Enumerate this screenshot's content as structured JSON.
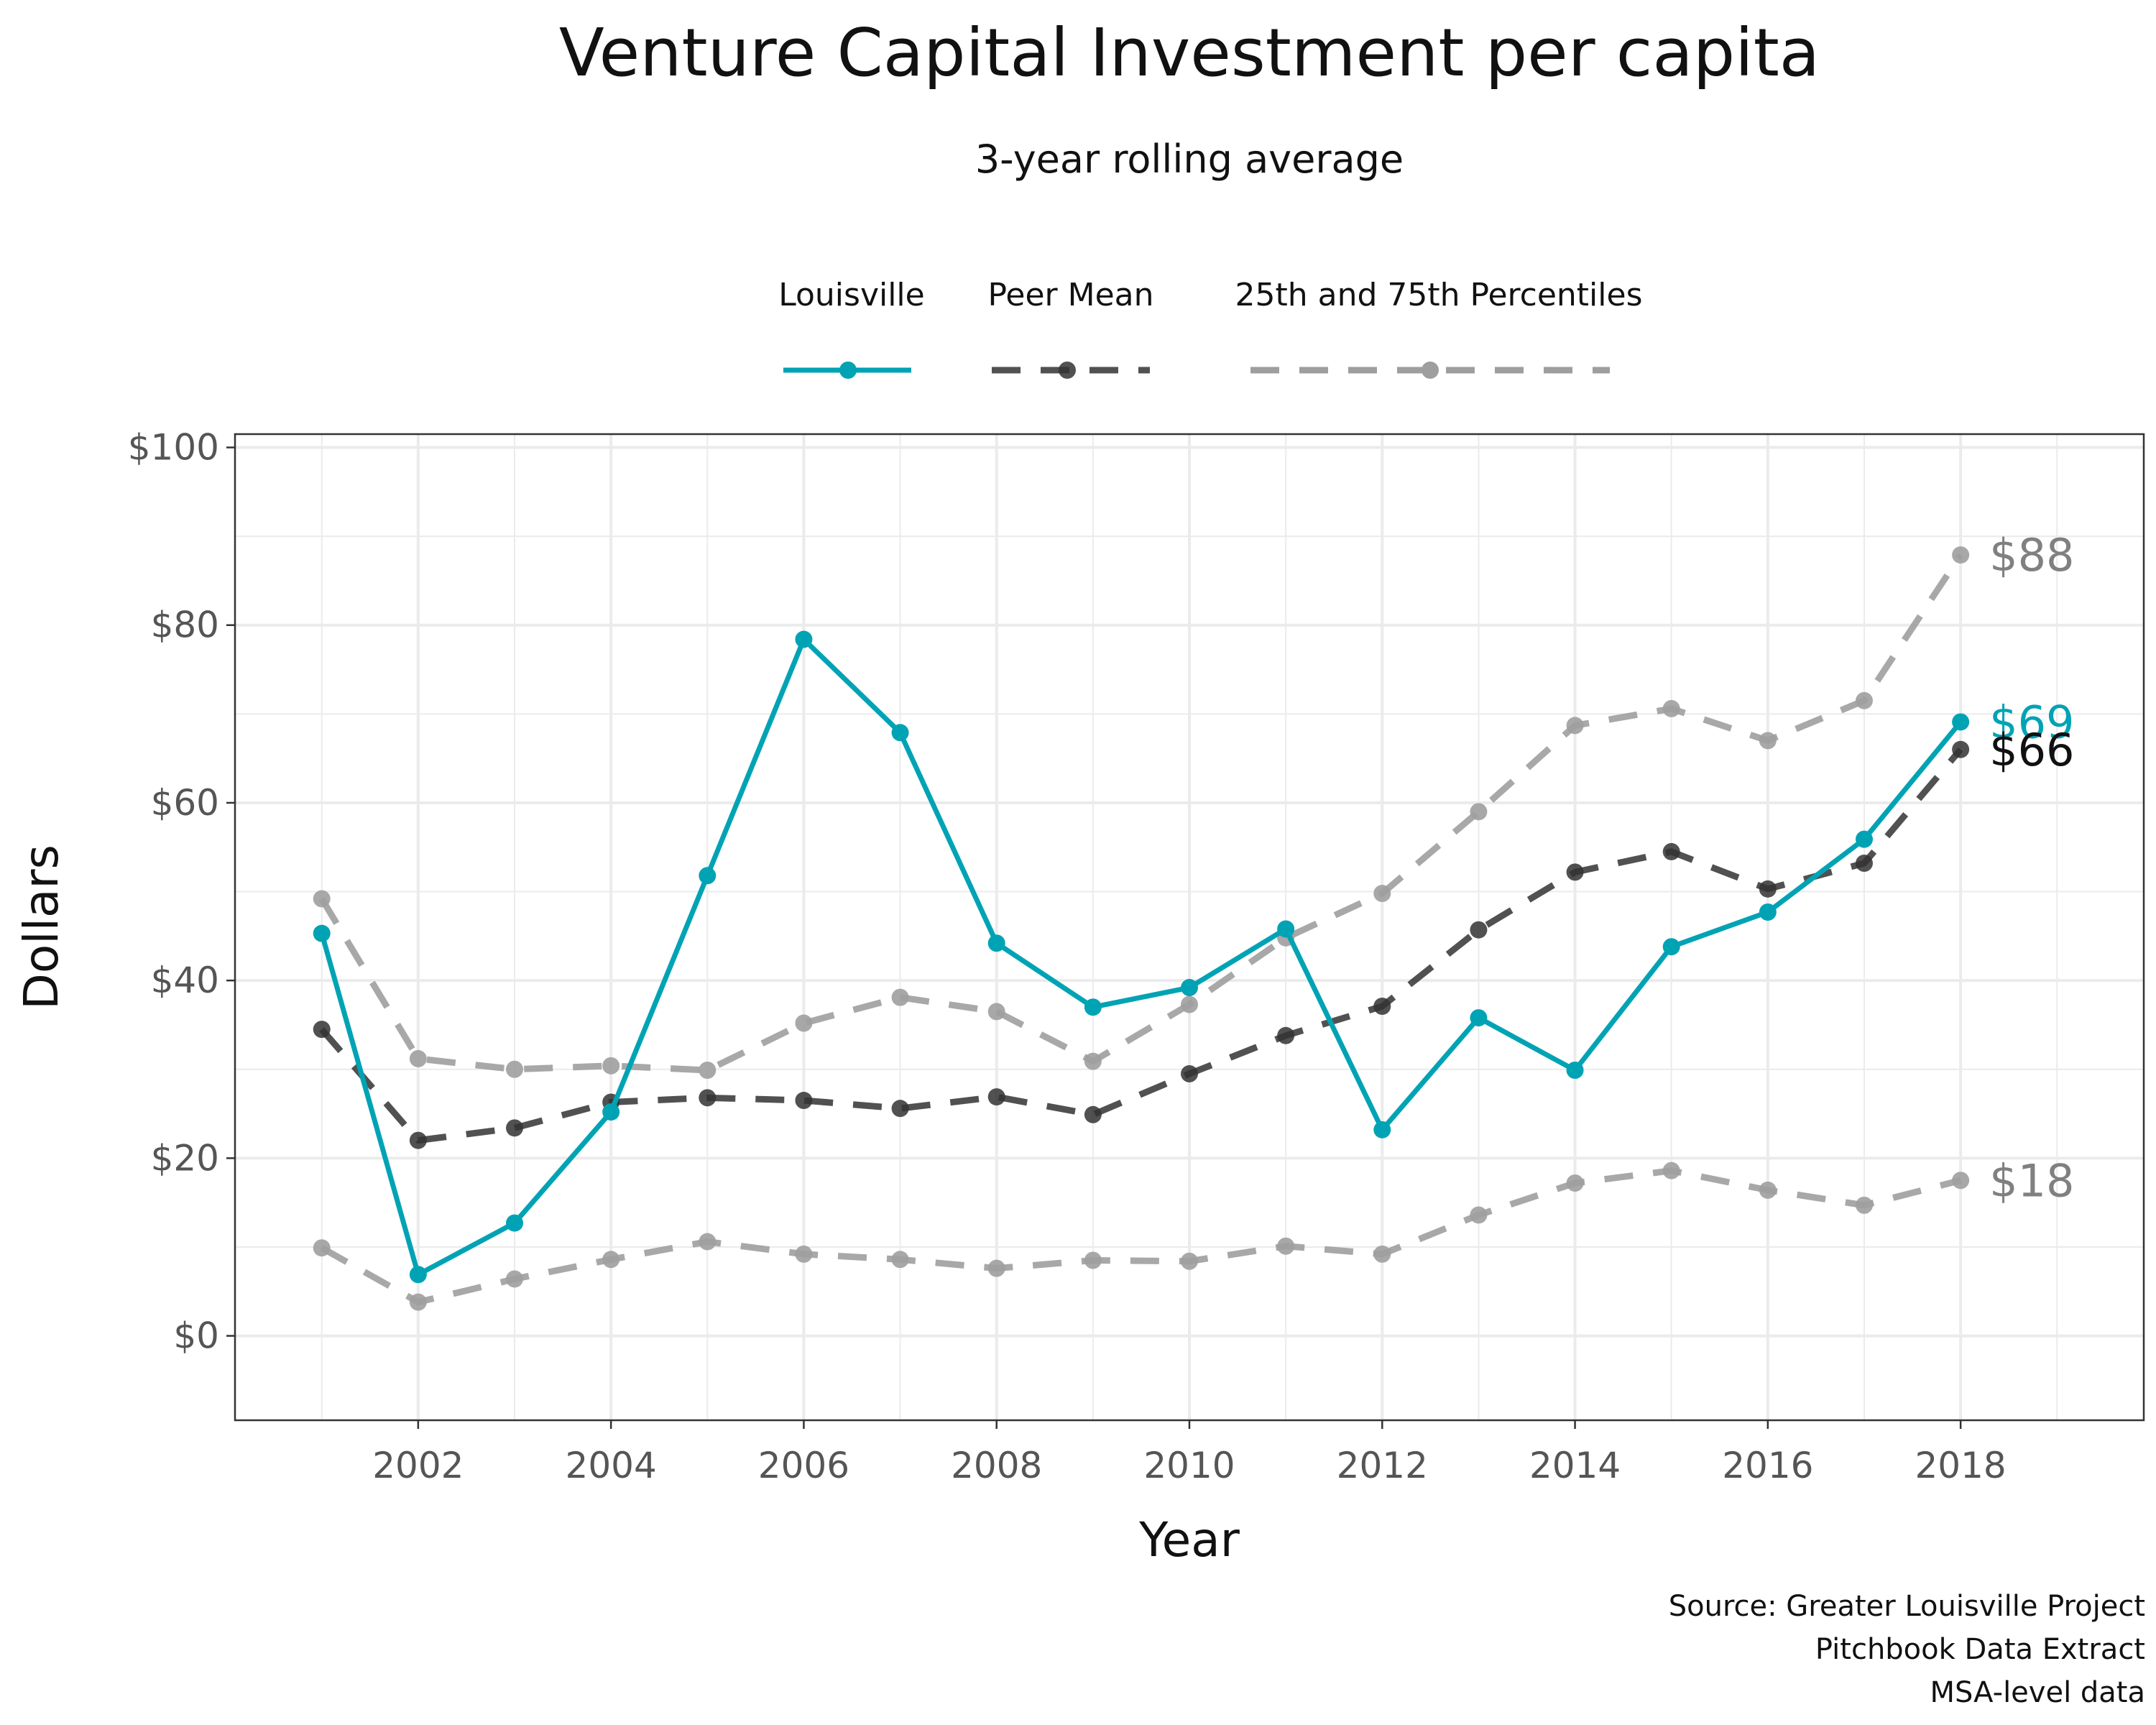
{
  "chart_data": {
    "type": "line",
    "title": "Venture Capital Investment per capita",
    "subtitle": "3-year rolling average",
    "xlabel": "Year",
    "ylabel": "Dollars",
    "x": [
      2001,
      2002,
      2003,
      2004,
      2005,
      2006,
      2007,
      2008,
      2009,
      2010,
      2011,
      2012,
      2013,
      2014,
      2015,
      2016,
      2017,
      2018
    ],
    "xlim": [
      2000.1,
      2019.9
    ],
    "ylim": [
      -9.5,
      101.5
    ],
    "x_ticks": [
      2002,
      2004,
      2006,
      2008,
      2010,
      2012,
      2014,
      2016,
      2018
    ],
    "x_tick_labels": [
      "2002",
      "2004",
      "2006",
      "2008",
      "2010",
      "2012",
      "2014",
      "2016",
      "2018"
    ],
    "y_ticks": [
      0,
      20,
      40,
      60,
      80,
      100
    ],
    "y_tick_labels": [
      "$0",
      "$20",
      "$40",
      "$60",
      "$80",
      "$100"
    ],
    "grid": true,
    "legend_position": "top",
    "legend": [
      {
        "label": "Louisville",
        "color": "#00A3B4",
        "dash": "solid"
      },
      {
        "label": "Peer Mean",
        "color": "#333333",
        "dash": "dashed"
      },
      {
        "label": "25th and 75th Percentiles",
        "color": "#9e9e9e",
        "dash": "dashed"
      }
    ],
    "series": [
      {
        "name": "Louisville",
        "color": "#00A3B4",
        "dash": "solid",
        "values": [
          45.3,
          6.9,
          12.7,
          25.2,
          51.8,
          78.4,
          67.9,
          44.2,
          37.0,
          39.2,
          45.8,
          23.2,
          35.8,
          29.9,
          43.8,
          47.7,
          55.9,
          69.1
        ]
      },
      {
        "name": "Peer Mean",
        "color": "#333333",
        "dash": "dashed",
        "values": [
          34.5,
          22.0,
          23.4,
          26.3,
          26.8,
          26.5,
          25.6,
          26.9,
          24.9,
          29.5,
          33.8,
          37.1,
          45.7,
          52.2,
          54.5,
          50.3,
          53.2,
          66.0
        ]
      },
      {
        "name": "75th Percentile",
        "color": "#9e9e9e",
        "dash": "dashed",
        "values": [
          49.2,
          31.2,
          30.0,
          30.4,
          29.9,
          35.2,
          38.1,
          36.5,
          30.9,
          37.3,
          44.8,
          49.8,
          59.0,
          68.7,
          70.6,
          67.0,
          71.5,
          87.9
        ]
      },
      {
        "name": "25th Percentile",
        "color": "#9e9e9e",
        "dash": "dashed",
        "values": [
          9.9,
          3.8,
          6.4,
          8.6,
          10.6,
          9.2,
          8.6,
          7.6,
          8.5,
          8.4,
          10.1,
          9.2,
          13.6,
          17.2,
          18.6,
          16.4,
          14.7,
          17.5
        ]
      }
    ],
    "end_labels": [
      {
        "text": "$88",
        "value": 87.9,
        "color": "#808080"
      },
      {
        "text": "$69",
        "value": 69.1,
        "color": "#00A3B4"
      },
      {
        "text": "$66",
        "value": 66.0,
        "color": "#111111"
      },
      {
        "text": "$18",
        "value": 17.5,
        "color": "#808080"
      }
    ],
    "caption": [
      "Source: Greater Louisville Project",
      "Pitchbook Data Extract",
      "MSA-level data"
    ]
  }
}
